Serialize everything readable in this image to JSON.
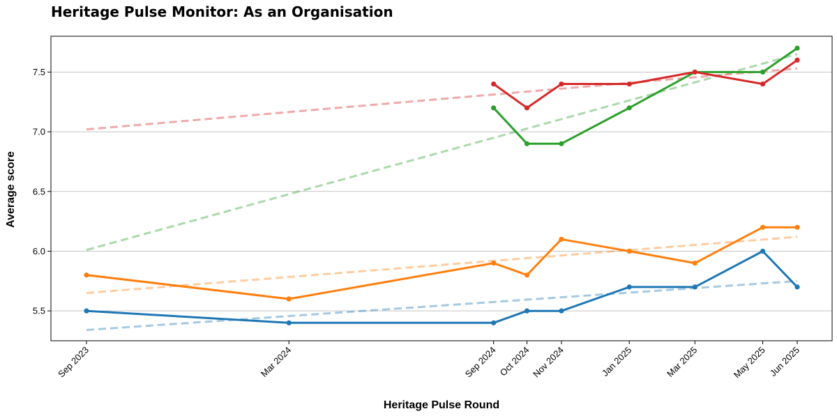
{
  "chart_data": {
    "type": "line",
    "title": "Heritage Pulse Monitor: As an Organisation",
    "xlabel": "Heritage Pulse Round",
    "ylabel": "Average score",
    "x": [
      "2023-09-01",
      "2024-03-01",
      "2024-09-01",
      "2024-10-01",
      "2024-11-01",
      "2025-01-01",
      "2025-03-01",
      "2025-05-01",
      "2025-06-01"
    ],
    "x_tick_labels": [
      "Sep 2023",
      "Mar 2024",
      "Sep 2024",
      "Oct 2024",
      "Nov 2024",
      "Jan 2025",
      "Mar 2025",
      "May 2025",
      "Jun 2025"
    ],
    "ylim": [
      5.25,
      7.8
    ],
    "y_ticks": [
      5.5,
      6.0,
      6.5,
      7.0,
      7.5
    ],
    "grid": "horizontal",
    "legend": "none",
    "series": [
      {
        "color": "#1f77b4",
        "values": [
          5.5,
          5.4,
          5.4,
          5.5,
          5.5,
          5.7,
          5.7,
          6.0,
          5.7
        ],
        "trend": {
          "start": 5.34,
          "end": 5.75
        }
      },
      {
        "color": "#ff7f0e",
        "values": [
          5.8,
          5.6,
          5.9,
          5.8,
          6.1,
          6.0,
          5.9,
          6.2,
          6.2
        ],
        "trend": {
          "start": 5.65,
          "end": 6.12
        }
      },
      {
        "color": "#2ca02c",
        "values": [
          null,
          null,
          7.2,
          6.9,
          6.9,
          7.2,
          7.5,
          7.5,
          7.7
        ],
        "trend": {
          "start": 6.01,
          "end": 7.65
        }
      },
      {
        "color": "#d62728",
        "values": [
          null,
          null,
          7.4,
          7.2,
          7.4,
          7.4,
          7.5,
          7.4,
          7.6
        ],
        "trend": {
          "start": 7.02,
          "end": 7.53
        }
      }
    ]
  }
}
